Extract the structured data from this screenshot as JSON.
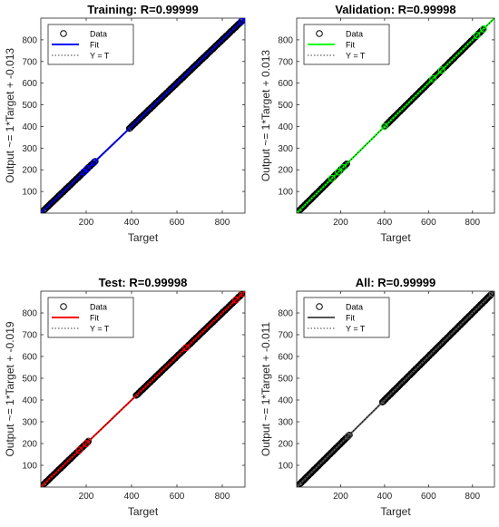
{
  "figure": {
    "background": "#ffffff"
  },
  "chart_data": [
    {
      "type": "scatter",
      "title": "Training: R=0.99999",
      "xlabel": "Target",
      "ylabel": "Output ~= 1*Target + -0.013",
      "xlim": [
        0,
        900
      ],
      "ylim": [
        0,
        900
      ],
      "xticks": [
        200,
        400,
        600,
        800
      ],
      "yticks": [
        100,
        200,
        300,
        400,
        500,
        600,
        700,
        800
      ],
      "fit_color": "#0000ff",
      "grid": false,
      "legend_position": "top-left",
      "legend": [
        "Data",
        "Fit",
        "Y = T"
      ],
      "series": [
        {
          "name": "Data",
          "style": "circle-marker",
          "ranges": [
            [
              15,
              240
            ],
            [
              390,
              890
            ]
          ],
          "highlight_x": [
            190,
            205,
            235,
            885
          ]
        },
        {
          "name": "Fit",
          "style": "line",
          "slope": 1,
          "intercept": -0.013
        },
        {
          "name": "Y = T",
          "style": "dotted-line",
          "slope": 1,
          "intercept": 0
        }
      ]
    },
    {
      "type": "scatter",
      "title": "Validation: R=0.99998",
      "xlabel": "Target",
      "ylabel": "Output ~= 1*Target + 0.013",
      "xlim": [
        0,
        900
      ],
      "ylim": [
        0,
        900
      ],
      "xticks": [
        200,
        400,
        600,
        800
      ],
      "yticks": [
        100,
        200,
        300,
        400,
        500,
        600,
        700,
        800
      ],
      "fit_color": "#00ff00",
      "grid": false,
      "legend_position": "top-left",
      "legend": [
        "Data",
        "Fit",
        "Y = T"
      ],
      "series": [
        {
          "name": "Data",
          "style": "circle-marker",
          "ranges": [
            [
              15,
              230
            ],
            [
              400,
              850
            ]
          ],
          "highlight_x": [
            160,
            190,
            210,
            400,
            620,
            660,
            820,
            850
          ]
        },
        {
          "name": "Fit",
          "style": "line",
          "slope": 1,
          "intercept": 0.013
        },
        {
          "name": "Y = T",
          "style": "dotted-line",
          "slope": 1,
          "intercept": 0
        }
      ]
    },
    {
      "type": "scatter",
      "title": "Test: R=0.99998",
      "xlabel": "Target",
      "ylabel": "Output ~= 1*Target + -0.019",
      "xlim": [
        0,
        900
      ],
      "ylim": [
        0,
        900
      ],
      "xticks": [
        200,
        400,
        600,
        800
      ],
      "yticks": [
        100,
        200,
        300,
        400,
        500,
        600,
        700,
        800
      ],
      "fit_color": "#ff0000",
      "grid": false,
      "legend_position": "top-left",
      "legend": [
        "Data",
        "Fit",
        "Y = T"
      ],
      "series": [
        {
          "name": "Data",
          "style": "circle-marker",
          "ranges": [
            [
              15,
              210
            ],
            [
              420,
              890
            ]
          ],
          "highlight_x": [
            170,
            200,
            640,
            860,
            890
          ]
        },
        {
          "name": "Fit",
          "style": "line",
          "slope": 1,
          "intercept": -0.019
        },
        {
          "name": "Y = T",
          "style": "dotted-line",
          "slope": 1,
          "intercept": 0
        }
      ]
    },
    {
      "type": "scatter",
      "title": "All: R=0.99999",
      "xlabel": "Target",
      "ylabel": "Output ~= 1*Target + -0.011",
      "xlim": [
        0,
        900
      ],
      "ylim": [
        0,
        900
      ],
      "xticks": [
        200,
        400,
        600,
        800
      ],
      "yticks": [
        100,
        200,
        300,
        400,
        500,
        600,
        700,
        800
      ],
      "fit_color": "#555555",
      "grid": false,
      "legend_position": "top-left",
      "legend": [
        "Data",
        "Fit",
        "Y = T"
      ],
      "series": [
        {
          "name": "Data",
          "style": "circle-marker",
          "ranges": [
            [
              15,
              240
            ],
            [
              390,
              890
            ]
          ],
          "highlight_x": [
            235,
            890
          ]
        },
        {
          "name": "Fit",
          "style": "line",
          "slope": 1,
          "intercept": -0.011
        },
        {
          "name": "Y = T",
          "style": "dotted-line",
          "slope": 1,
          "intercept": 0
        }
      ]
    }
  ]
}
